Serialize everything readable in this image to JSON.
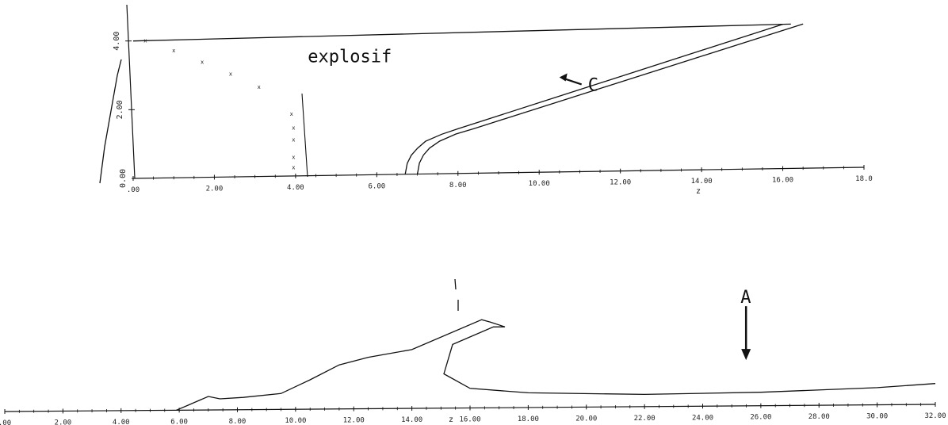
{
  "chart_data": [
    {
      "id": "top",
      "type": "line",
      "title": "",
      "xlabel": "z",
      "ylabel": "",
      "xlim": [
        0,
        18
      ],
      "ylim": [
        0,
        4.5
      ],
      "x_ticks": [
        0,
        2,
        4,
        6,
        8,
        10,
        12,
        14,
        16,
        18
      ],
      "x_tick_labels": [
        ".00",
        "2.00",
        "4.00",
        "6.00",
        "8.00",
        "10.00",
        "12.00",
        "14.00",
        "16.00",
        "18.0"
      ],
      "y_ticks": [
        0,
        2,
        4
      ],
      "y_tick_labels": [
        "0.00",
        "2.00",
        "4.00"
      ],
      "grid": false,
      "series": [
        {
          "points": [
            [
              6.7,
              0
            ],
            [
              6.75,
              0.32
            ],
            [
              6.85,
              0.55
            ],
            [
              7.0,
              0.75
            ],
            [
              7.2,
              0.95
            ],
            [
              7.6,
              1.15
            ],
            [
              8.0,
              1.3
            ],
            [
              16.0,
              4.2
            ]
          ]
        },
        {
          "points": [
            [
              7.0,
              0
            ],
            [
              7.05,
              0.32
            ],
            [
              7.15,
              0.55
            ],
            [
              7.3,
              0.75
            ],
            [
              7.55,
              0.95
            ],
            [
              7.95,
              1.15
            ],
            [
              8.4,
              1.3
            ],
            [
              16.5,
              4.2
            ]
          ]
        },
        {
          "points": [
            [
              0,
              4.0
            ],
            [
              16.2,
              4.2
            ]
          ]
        },
        {
          "style": "markers",
          "points": [
            [
              0.3,
              3.95
            ],
            [
              1.0,
              3.65
            ],
            [
              1.7,
              3.3
            ],
            [
              2.4,
              2.95
            ],
            [
              3.1,
              2.55
            ],
            [
              3.9,
              1.75
            ],
            [
              3.95,
              1.35
            ],
            [
              3.95,
              1.0
            ],
            [
              3.95,
              0.5
            ],
            [
              3.95,
              0.2
            ]
          ]
        }
      ],
      "annotations": [
        {
          "text": "explosif",
          "x": 4.3,
          "y": 3.3
        },
        {
          "text": "C",
          "x": 11.2,
          "y": 2.35
        }
      ]
    },
    {
      "id": "bottom",
      "type": "line",
      "title": "",
      "xlabel": "z",
      "ylabel": "",
      "xlim": [
        0,
        32
      ],
      "ylim": [
        0,
        4.5
      ],
      "x_ticks": [
        0,
        2,
        4,
        6,
        8,
        10,
        12,
        14,
        16,
        18,
        20,
        22,
        24,
        26,
        28,
        30,
        32
      ],
      "x_tick_labels": [
        ".00",
        "2.00",
        "4.00",
        "6.00",
        "8.00",
        "10.00",
        "12.00",
        "14.00",
        "16.00",
        "18.00",
        "20.00",
        "22.00",
        "24.00",
        "26.00",
        "28.00",
        "30.00",
        "32.00"
      ],
      "grid": false,
      "series": [
        {
          "points": [
            [
              5.9,
              0
            ],
            [
              6.3,
              0.2
            ],
            [
              7.0,
              0.55
            ],
            [
              7.4,
              0.45
            ],
            [
              8.2,
              0.5
            ],
            [
              9.5,
              0.65
            ],
            [
              10.5,
              1.2
            ],
            [
              11.5,
              1.8
            ],
            [
              12.5,
              2.1
            ],
            [
              14.0,
              2.4
            ],
            [
              16.4,
              3.6
            ],
            [
              16.7,
              3.5
            ],
            [
              17.2,
              3.3
            ],
            [
              16.8,
              3.3
            ],
            [
              15.4,
              2.6
            ],
            [
              15.1,
              1.4
            ],
            [
              16.0,
              0.8
            ],
            [
              18.0,
              0.6
            ],
            [
              22.0,
              0.5
            ],
            [
              26.0,
              0.55
            ],
            [
              30.0,
              0.7
            ],
            [
              32.0,
              0.85
            ]
          ]
        }
      ],
      "annotations": [
        {
          "text": "A",
          "x": 25.3,
          "y": 4.2
        }
      ]
    }
  ]
}
